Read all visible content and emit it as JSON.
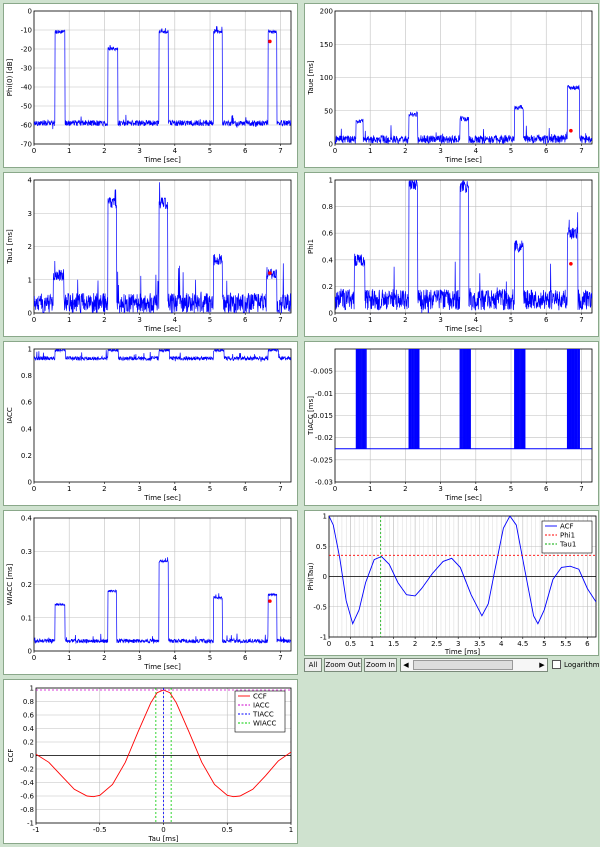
{
  "chart_data": [
    {
      "id": "phi0",
      "type": "line",
      "xlabel": "Time [sec]",
      "ylabel": "Phi(0) [dB]",
      "xlim": [
        0,
        7.3
      ],
      "ylim": [
        -70,
        0
      ],
      "xticks": [
        0,
        1,
        2,
        3,
        4,
        5,
        6,
        7
      ],
      "yticks": [
        0,
        -10,
        -20,
        -30,
        -40,
        -50,
        -60,
        -70
      ],
      "grid": true,
      "series": [
        {
          "color": "#0000ff",
          "baseline": -59,
          "noise": 1.5,
          "segments": [
            {
              "start": 0.6,
              "end": 0.88,
              "level": -11
            },
            {
              "start": 2.1,
              "end": 2.38,
              "level": -20
            },
            {
              "start": 3.55,
              "end": 3.82,
              "level": -11
            },
            {
              "start": 5.1,
              "end": 5.35,
              "level": -11
            },
            {
              "start": 6.65,
              "end": 6.9,
              "level": -11
            }
          ]
        }
      ],
      "marker": {
        "x": 6.7,
        "y": -16,
        "color": "#ff0000"
      }
    },
    {
      "id": "taue",
      "type": "line",
      "xlabel": "Time [sec]",
      "ylabel": "Taue [ms]",
      "xlim": [
        0,
        7.3
      ],
      "ylim": [
        0,
        200
      ],
      "xticks": [
        0,
        1,
        2,
        3,
        4,
        5,
        6,
        7
      ],
      "yticks": [
        0,
        50,
        100,
        150,
        200
      ],
      "grid": true,
      "series": [
        {
          "color": "#0000ff",
          "baseline": 7,
          "noise": 6,
          "segments": [
            {
              "start": 0.6,
              "end": 0.8,
              "level": 35
            },
            {
              "start": 2.1,
              "end": 2.35,
              "level": 45
            },
            {
              "start": 3.55,
              "end": 3.8,
              "level": 38
            },
            {
              "start": 5.1,
              "end": 5.35,
              "level": 55
            },
            {
              "start": 6.6,
              "end": 6.95,
              "level": 85
            }
          ]
        }
      ],
      "marker": {
        "x": 6.7,
        "y": 20,
        "color": "#ff0000"
      }
    },
    {
      "id": "tau1",
      "type": "line",
      "xlabel": "Time [sec]",
      "ylabel": "Tau1 [ms]",
      "xlim": [
        0,
        7.3
      ],
      "ylim": [
        0,
        4
      ],
      "xticks": [
        0,
        1,
        2,
        3,
        4,
        5,
        6,
        7
      ],
      "yticks": [
        0,
        1,
        2,
        3,
        4
      ],
      "grid": true,
      "series": [
        {
          "color": "#0000ff",
          "baseline": 0.3,
          "noise": 0.3,
          "segments": [
            {
              "start": 0.55,
              "end": 0.85,
              "level": 1.15
            },
            {
              "start": 2.1,
              "end": 2.35,
              "level": 3.3
            },
            {
              "start": 3.55,
              "end": 3.8,
              "level": 3.3
            },
            {
              "start": 5.1,
              "end": 5.35,
              "level": 1.6
            },
            {
              "start": 6.6,
              "end": 6.9,
              "level": 1.2
            }
          ]
        }
      ],
      "marker": {
        "x": 6.7,
        "y": 1.2,
        "color": "#ff0000"
      }
    },
    {
      "id": "phi1",
      "type": "line",
      "xlabel": "Time [sec]",
      "ylabel": "Phi1",
      "xlim": [
        0,
        7.3
      ],
      "ylim": [
        0,
        1
      ],
      "xticks": [
        0,
        1,
        2,
        3,
        4,
        5,
        6,
        7
      ],
      "yticks": [
        0,
        0.2,
        0.4,
        0.6,
        0.8,
        1
      ],
      "grid": true,
      "series": [
        {
          "color": "#0000ff",
          "baseline": 0.1,
          "noise": 0.08,
          "segments": [
            {
              "start": 0.55,
              "end": 0.85,
              "level": 0.4
            },
            {
              "start": 2.1,
              "end": 2.35,
              "level": 0.95
            },
            {
              "start": 3.55,
              "end": 3.8,
              "level": 0.95
            },
            {
              "start": 5.1,
              "end": 5.35,
              "level": 0.5
            },
            {
              "start": 6.6,
              "end": 6.9,
              "level": 0.6
            }
          ]
        }
      ],
      "marker": {
        "x": 6.7,
        "y": 0.37,
        "color": "#ff0000"
      }
    },
    {
      "id": "iacc",
      "type": "line",
      "xlabel": "Time [sec]",
      "ylabel": "IACC",
      "xlim": [
        0,
        7.3
      ],
      "ylim": [
        0,
        1
      ],
      "xticks": [
        0,
        1,
        2,
        3,
        4,
        5,
        6,
        7
      ],
      "yticks": [
        0,
        0.2,
        0.4,
        0.6,
        0.8,
        1
      ],
      "grid": false,
      "series": [
        {
          "color": "#0000ff",
          "baseline": 0.93,
          "noise": 0.015,
          "segments": [
            {
              "start": 0.6,
              "end": 0.9,
              "level": 0.99
            },
            {
              "start": 2.1,
              "end": 2.4,
              "level": 0.99
            },
            {
              "start": 3.55,
              "end": 3.85,
              "level": 0.99
            },
            {
              "start": 5.1,
              "end": 5.4,
              "level": 0.99
            },
            {
              "start": 6.65,
              "end": 6.95,
              "level": 0.99
            }
          ]
        }
      ]
    },
    {
      "id": "tiacc",
      "type": "line",
      "xlabel": "Time [sec]",
      "ylabel": "TIACC [ms]",
      "xlim": [
        0,
        7.3
      ],
      "ylim": [
        -0.03,
        0
      ],
      "xticks": [
        0,
        1,
        2,
        3,
        4,
        5,
        6,
        7
      ],
      "yticks": [
        -0.005,
        -0.01,
        -0.015,
        -0.02,
        -0.025,
        -0.03
      ],
      "grid": true,
      "series": [
        {
          "color": "#0000ff",
          "baseline": -0.0225,
          "bursts": [
            {
              "start": 0.6,
              "end": 0.9
            },
            {
              "start": 2.1,
              "end": 2.4
            },
            {
              "start": 3.55,
              "end": 3.85
            },
            {
              "start": 5.1,
              "end": 5.4
            },
            {
              "start": 6.6,
              "end": 6.95
            }
          ]
        }
      ]
    },
    {
      "id": "wiacc",
      "type": "line",
      "xlabel": "Time [sec]",
      "ylabel": "WIACC [ms]",
      "xlim": [
        0,
        7.3
      ],
      "ylim": [
        0,
        0.4
      ],
      "xticks": [
        0,
        1,
        2,
        3,
        4,
        5,
        6,
        7
      ],
      "yticks": [
        0,
        0.1,
        0.2,
        0.3,
        0.4
      ],
      "grid": true,
      "series": [
        {
          "color": "#0000ff",
          "baseline": 0.03,
          "noise": 0.006,
          "segments": [
            {
              "start": 0.6,
              "end": 0.88,
              "level": 0.14
            },
            {
              "start": 2.1,
              "end": 2.35,
              "level": 0.18
            },
            {
              "start": 3.55,
              "end": 3.82,
              "level": 0.27
            },
            {
              "start": 5.1,
              "end": 5.35,
              "level": 0.16
            },
            {
              "start": 6.65,
              "end": 6.9,
              "level": 0.17
            }
          ]
        }
      ],
      "marker": {
        "x": 6.7,
        "y": 0.15,
        "color": "#ff0000"
      }
    },
    {
      "id": "acf",
      "type": "line",
      "xlabel": "Time [ms]",
      "ylabel": "Phi(Tau)",
      "xlim": [
        0,
        6.2
      ],
      "ylim": [
        -1,
        1
      ],
      "xticks": [
        0,
        0.5,
        1,
        1.5,
        2,
        2.5,
        3,
        3.5,
        4,
        4.5,
        5,
        5.5,
        6
      ],
      "yticks": [
        1,
        0.5,
        0,
        -0.5,
        -1
      ],
      "grid": true,
      "fine_grid": true,
      "series": [
        {
          "name": "ACF",
          "color": "#0000ff",
          "points": [
            [
              0,
              1
            ],
            [
              0.1,
              0.85
            ],
            [
              0.25,
              0.3
            ],
            [
              0.4,
              -0.4
            ],
            [
              0.55,
              -0.78
            ],
            [
              0.7,
              -0.55
            ],
            [
              0.85,
              -0.1
            ],
            [
              1.05,
              0.28
            ],
            [
              1.22,
              0.33
            ],
            [
              1.4,
              0.2
            ],
            [
              1.6,
              -0.1
            ],
            [
              1.8,
              -0.3
            ],
            [
              2.0,
              -0.32
            ],
            [
              2.15,
              -0.2
            ],
            [
              2.4,
              0.05
            ],
            [
              2.65,
              0.25
            ],
            [
              2.85,
              0.3
            ],
            [
              3.05,
              0.15
            ],
            [
              3.3,
              -0.3
            ],
            [
              3.55,
              -0.65
            ],
            [
              3.7,
              -0.45
            ],
            [
              3.85,
              0.1
            ],
            [
              4.05,
              0.8
            ],
            [
              4.2,
              1.0
            ],
            [
              4.35,
              0.85
            ],
            [
              4.55,
              0.1
            ],
            [
              4.75,
              -0.65
            ],
            [
              4.85,
              -0.78
            ],
            [
              5.0,
              -0.55
            ],
            [
              5.2,
              -0.05
            ],
            [
              5.4,
              0.15
            ],
            [
              5.6,
              0.17
            ],
            [
              5.8,
              0.12
            ],
            [
              6.0,
              -0.2
            ],
            [
              6.2,
              -0.42
            ]
          ]
        },
        {
          "name": "Phi1",
          "color": "#ff0000",
          "dashed": true,
          "hline": 0.35
        },
        {
          "name": "Tau1",
          "color": "#00aa00",
          "dashed": true,
          "vline": 1.2
        }
      ],
      "legend": "top-right"
    },
    {
      "id": "ccf",
      "type": "line",
      "xlabel": "Tau [ms]",
      "ylabel": "CCF",
      "xlim": [
        -1,
        1
      ],
      "ylim": [
        -1,
        1
      ],
      "xticks": [
        -1,
        -0.5,
        0,
        0.5,
        1
      ],
      "yticks": [
        1,
        0.8,
        0.6,
        0.4,
        0.2,
        0,
        -0.2,
        -0.4,
        -0.6,
        -0.8,
        -1
      ],
      "grid": true,
      "series": [
        {
          "name": "CCF",
          "color": "#ff0000",
          "points": [
            [
              -1,
              0.02
            ],
            [
              -0.9,
              -0.1
            ],
            [
              -0.8,
              -0.3
            ],
            [
              -0.7,
              -0.5
            ],
            [
              -0.6,
              -0.6
            ],
            [
              -0.55,
              -0.61
            ],
            [
              -0.5,
              -0.59
            ],
            [
              -0.4,
              -0.43
            ],
            [
              -0.3,
              -0.1
            ],
            [
              -0.2,
              0.35
            ],
            [
              -0.1,
              0.78
            ],
            [
              -0.05,
              0.93
            ],
            [
              0,
              0.97
            ],
            [
              0.05,
              0.93
            ],
            [
              0.1,
              0.78
            ],
            [
              0.2,
              0.35
            ],
            [
              0.3,
              -0.1
            ],
            [
              0.4,
              -0.43
            ],
            [
              0.5,
              -0.59
            ],
            [
              0.55,
              -0.61
            ],
            [
              0.6,
              -0.6
            ],
            [
              0.7,
              -0.5
            ],
            [
              0.8,
              -0.3
            ],
            [
              0.9,
              -0.08
            ],
            [
              1.0,
              0.05
            ]
          ]
        },
        {
          "name": "IACC",
          "color": "#cc00cc",
          "dashed": true,
          "hline": 0.97
        },
        {
          "name": "TIACC",
          "color": "#0000ff",
          "dashed": true,
          "vline": 0.0
        },
        {
          "name": "WIACC",
          "color": "#00cc00",
          "dashed": true,
          "vlines": [
            -0.06,
            0.06
          ]
        }
      ],
      "legend": "top-right"
    }
  ],
  "toolbar": {
    "all_label": "All",
    "zoom_out_label": "Zoom Out",
    "zoom_in_label": "Zoom In",
    "left_arrow": "◀",
    "right_arrow": "▶",
    "log_label": "Logarithm",
    "log_checked": false
  }
}
